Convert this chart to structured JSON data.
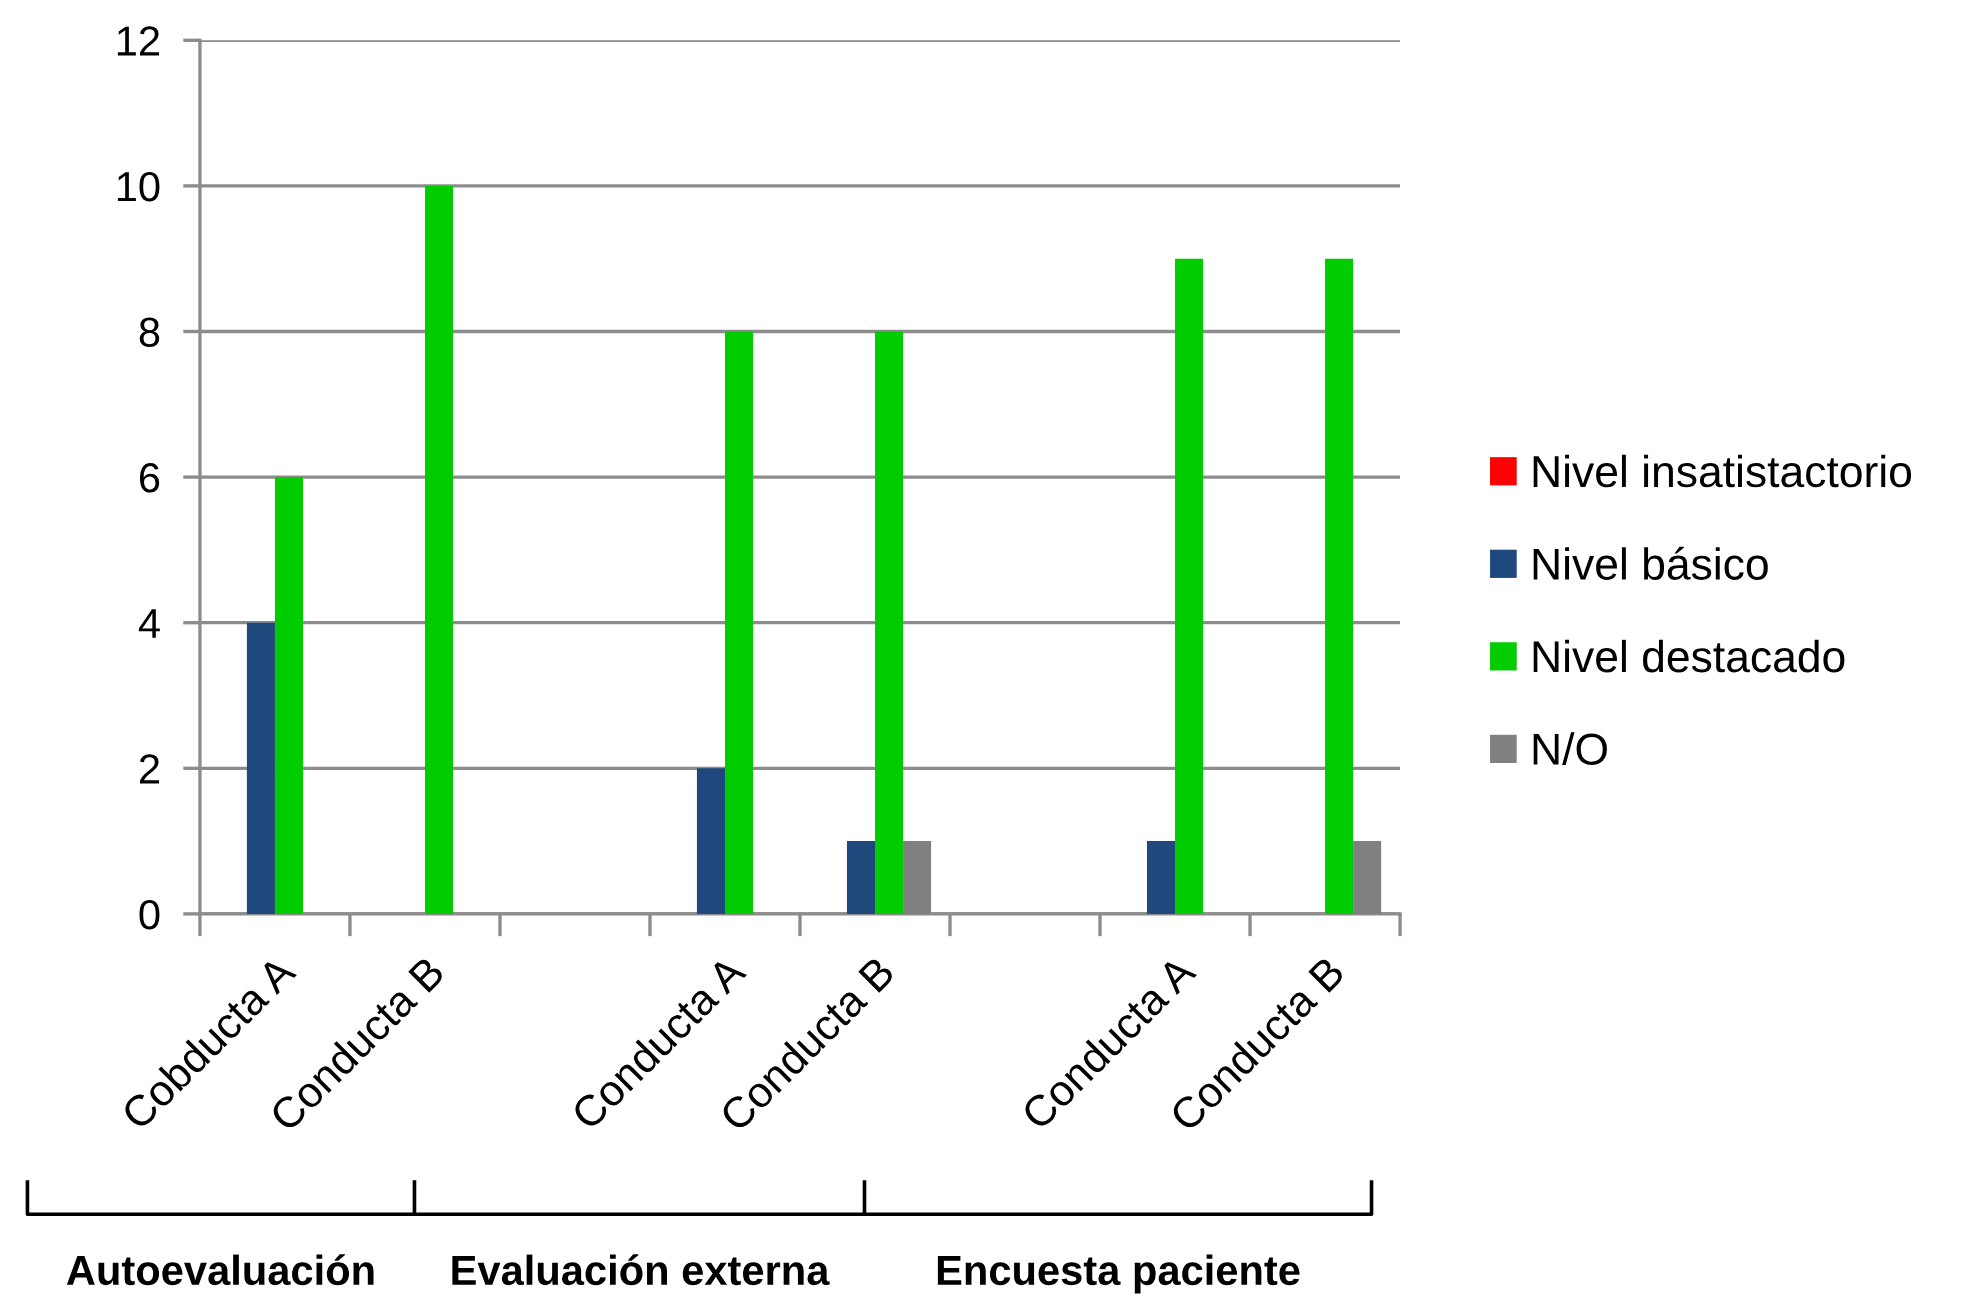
{
  "chart_data": {
    "type": "bar",
    "categories": [
      "Cobducta A",
      "Conducta B",
      null,
      "Conducta A",
      "Conducta B",
      null,
      "Conducta A",
      "Conducta B"
    ],
    "series": [
      {
        "name": "Nivel insatistactorio",
        "color": "#ff0000",
        "values": [
          0,
          0,
          null,
          0,
          0,
          null,
          0,
          0
        ]
      },
      {
        "name": "Nivel básico",
        "color": "#1f497d",
        "values": [
          4,
          0,
          null,
          2,
          1,
          null,
          1,
          0
        ]
      },
      {
        "name": "Nivel destacado",
        "color": "#00cc00",
        "values": [
          6,
          10,
          null,
          8,
          8,
          null,
          9,
          9
        ]
      },
      {
        "name": "N/O",
        "color": "#808080",
        "values": [
          0,
          0,
          null,
          0,
          1,
          null,
          0,
          1
        ]
      }
    ],
    "ylim": [
      0,
      12
    ],
    "yticks": [
      0,
      2,
      4,
      6,
      8,
      10,
      12
    ],
    "grid": "y",
    "legend": "right",
    "annotations": [
      "Autoevaluación",
      "Evaluación externa",
      "Encuesta paciente"
    ]
  }
}
